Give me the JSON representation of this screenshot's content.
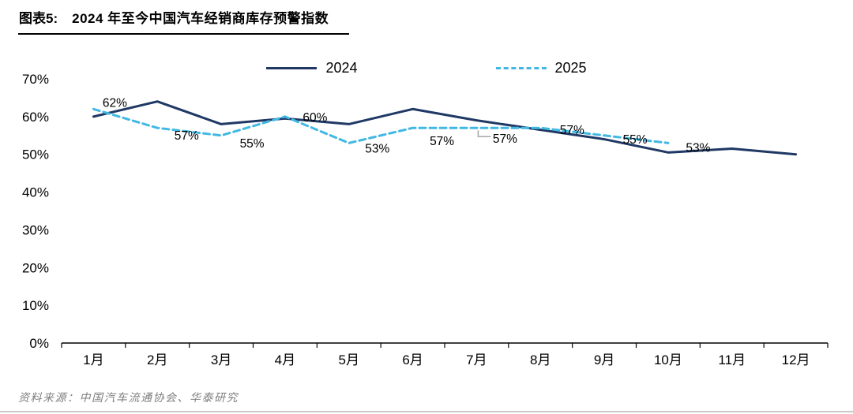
{
  "header": {
    "tag": "图表5:",
    "title": "2024 年至今中国汽车经销商库存预警指数"
  },
  "chart_data": {
    "type": "line",
    "title": "2024 年至今中国汽车经销商库存预警指数",
    "categories": [
      "1月",
      "2月",
      "3月",
      "4月",
      "5月",
      "6月",
      "7月",
      "8月",
      "9月",
      "10月",
      "11月",
      "12月"
    ],
    "y_ticks": [
      "0%",
      "10%",
      "20%",
      "30%",
      "40%",
      "50%",
      "60%",
      "70%"
    ],
    "ylim": [
      0,
      70
    ],
    "grid": false,
    "legend_position": "top",
    "series": [
      {
        "name": "2024",
        "style": "solid",
        "color": "#1F3864",
        "values": [
          60,
          64,
          58,
          59.5,
          58,
          62,
          59,
          56.5,
          54,
          50.5,
          51.5,
          50
        ]
      },
      {
        "name": "2025",
        "style": "dashed",
        "color": "#41B8E4",
        "values": [
          62,
          57,
          55,
          60,
          53,
          57,
          57,
          57,
          55,
          53
        ],
        "point_labels": [
          "62%",
          "57%",
          "55%",
          "60%",
          "53%",
          "57%",
          "57%",
          "57%",
          "55%",
          "53%"
        ]
      }
    ],
    "label_color": "#000000",
    "axis_color": "#000000",
    "leader_color": "#A6A6A6"
  },
  "footer": {
    "source": "资料来源：中国汽车流通协会、华泰研究"
  }
}
